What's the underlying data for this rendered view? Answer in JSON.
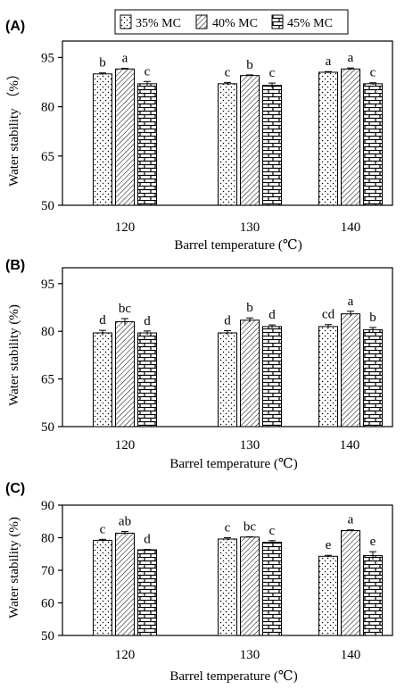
{
  "legend": {
    "items": [
      {
        "label": "35% MC",
        "pattern": "dots"
      },
      {
        "label": "40% MC",
        "pattern": "hatch"
      },
      {
        "label": "45% MC",
        "pattern": "brick"
      }
    ]
  },
  "colors": {
    "ink": "#000000",
    "background": "#ffffff"
  },
  "chart_data": [
    {
      "type": "bar",
      "panel": "(A)",
      "categories": [
        "120",
        "130",
        "140"
      ],
      "series": [
        {
          "name": "35% MC",
          "values": [
            90.0,
            87.0,
            90.5
          ],
          "errors": [
            0.3,
            0.4,
            0.2
          ],
          "letters": [
            "b",
            "c",
            "a"
          ]
        },
        {
          "name": "40% MC",
          "values": [
            91.5,
            89.5,
            91.5
          ],
          "errors": [
            0.2,
            0.2,
            0.3
          ],
          "letters": [
            "a",
            "b",
            "a"
          ]
        },
        {
          "name": "45% MC",
          "values": [
            87.0,
            86.5,
            87.0
          ],
          "errors": [
            0.7,
            0.7,
            0.3
          ],
          "letters": [
            "c",
            "c",
            "c"
          ]
        }
      ],
      "ylabel": "Water stability （%）",
      "xlabel": "Barrel temperature (℃)",
      "ylim": [
        50,
        100
      ],
      "yticks": [
        50,
        65,
        80,
        95
      ],
      "legend": "top-center",
      "grid": false
    },
    {
      "type": "bar",
      "panel": "(B)",
      "categories": [
        "120",
        "130",
        "140"
      ],
      "series": [
        {
          "name": "35% MC",
          "values": [
            79.5,
            79.5,
            81.5
          ],
          "errors": [
            0.8,
            0.7,
            0.6
          ],
          "letters": [
            "d",
            "d",
            "cd"
          ]
        },
        {
          "name": "40% MC",
          "values": [
            83.0,
            83.5,
            85.5
          ],
          "errors": [
            1.0,
            0.7,
            0.8
          ],
          "letters": [
            "bc",
            "b",
            "a"
          ]
        },
        {
          "name": "45% MC",
          "values": [
            79.5,
            81.5,
            80.5
          ],
          "errors": [
            0.6,
            0.5,
            0.7
          ],
          "letters": [
            "d",
            "d",
            "b"
          ]
        }
      ],
      "ylabel": "Water stability (%)",
      "xlabel": "Barrel temperature (℃)",
      "ylim": [
        50,
        100
      ],
      "yticks": [
        50,
        65,
        80,
        95
      ],
      "grid": false
    },
    {
      "type": "bar",
      "panel": "(C)",
      "categories": [
        "120",
        "130",
        "140"
      ],
      "series": [
        {
          "name": "35% MC",
          "values": [
            79.2,
            79.6,
            74.3
          ],
          "errors": [
            0.3,
            0.4,
            0.3
          ],
          "letters": [
            "c",
            "c",
            "e"
          ]
        },
        {
          "name": "40% MC",
          "values": [
            81.4,
            80.2,
            82.2
          ],
          "errors": [
            0.5,
            0.1,
            0.2
          ],
          "letters": [
            "ab",
            "bc",
            "a"
          ]
        },
        {
          "name": "45% MC",
          "values": [
            76.3,
            78.6,
            74.5
          ],
          "errors": [
            0.1,
            0.5,
            1.2
          ],
          "letters": [
            "d",
            "c",
            "e"
          ]
        }
      ],
      "ylabel": "Water stability (%)",
      "xlabel": "Barrel temperature (℃)",
      "ylim": [
        50,
        90
      ],
      "yticks": [
        50,
        60,
        70,
        80,
        90
      ],
      "grid": false
    }
  ]
}
